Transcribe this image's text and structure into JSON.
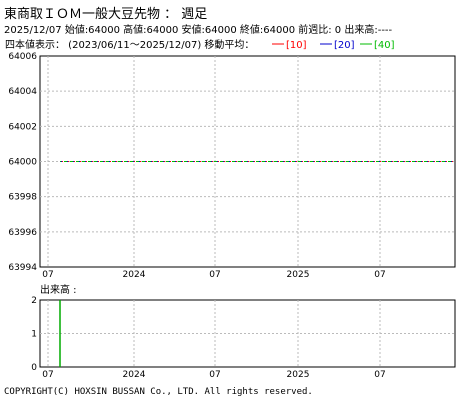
{
  "header": {
    "title": "東商取ＩＯＭ一般大豆先物 ： 週足",
    "info": "2025/12/07 始値:64000 高値:64000 安値:64000 終値:64000 前週比: 0 出来高:----"
  },
  "legend": {
    "period_label": "四本値表示： (2023/06/11～2025/12/07) 移動平均：",
    "ma10": "[10]",
    "ma20": "[20]",
    "ma40": "[40]",
    "colors": {
      "ma10": "#ff0000",
      "ma20": "#0000cc",
      "ma40": "#00bb00"
    }
  },
  "volume_label": "出来高 :",
  "footer": "COPYRIGHT(C) HOXSIN BUSSAN Co., LTD. All rights reserved.",
  "chart_data": [
    {
      "type": "line",
      "x_tick_labels": [
        "07",
        "2024",
        "07",
        "2025",
        "07"
      ],
      "y_tick_labels": [
        "64006",
        "64004",
        "64002",
        "64000",
        "63998",
        "63996",
        "63994"
      ],
      "ylim": [
        63994,
        64006
      ],
      "series": [
        {
          "name": "[10]",
          "values": [
            64000,
            64000
          ]
        },
        {
          "name": "[20]",
          "values": [
            64000,
            64000
          ]
        },
        {
          "name": "[40]",
          "values": [
            64000,
            64000
          ]
        }
      ],
      "grid": true,
      "grid_style": "dashed"
    },
    {
      "type": "bar",
      "x_tick_labels": [
        "07",
        "2024",
        "07",
        "2025",
        "07"
      ],
      "y_tick_labels": [
        "2",
        "1",
        "0"
      ],
      "ylim": [
        0,
        2
      ],
      "bars": [
        {
          "x": "2023-07",
          "value": 2
        }
      ],
      "grid": true,
      "grid_style": "dashed"
    }
  ]
}
